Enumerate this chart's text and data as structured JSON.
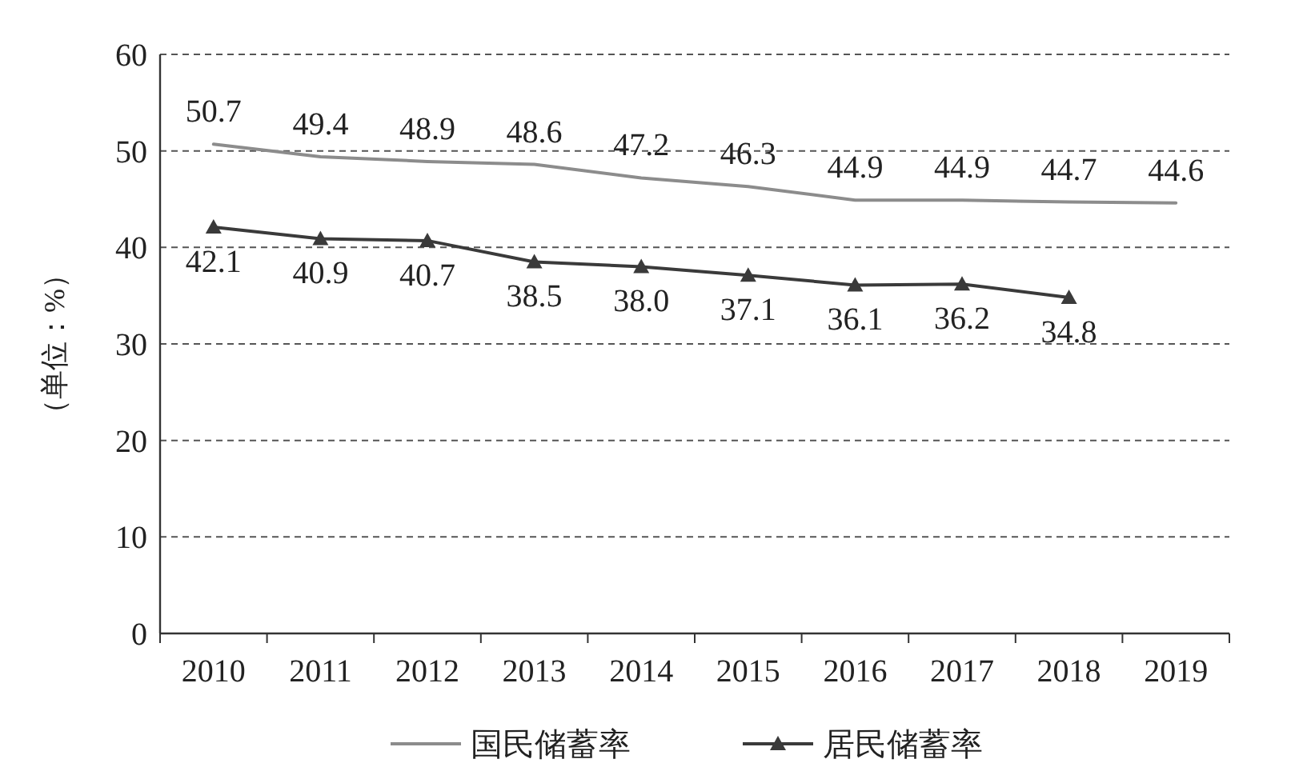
{
  "chart_data": {
    "type": "line",
    "ylabel": "（单位：%）",
    "categories": [
      "2010",
      "2011",
      "2012",
      "2013",
      "2014",
      "2015",
      "2016",
      "2017",
      "2018",
      "2019"
    ],
    "series": [
      {
        "name": "国民储蓄率",
        "color": "#8c8c8c",
        "marker": "none",
        "values": [
          50.7,
          49.4,
          48.9,
          48.6,
          47.2,
          46.3,
          44.9,
          44.9,
          44.7,
          44.6
        ],
        "value_labels": [
          "50.7",
          "49.4",
          "48.9",
          "48.6",
          "47.2",
          "46.3",
          "44.9",
          "44.9",
          "44.7",
          "44.6"
        ]
      },
      {
        "name": "居民储蓄率",
        "color": "#3a3a3a",
        "marker": "triangle",
        "values": [
          42.1,
          40.9,
          40.7,
          38.5,
          38.0,
          37.1,
          36.1,
          36.2,
          34.8,
          null
        ],
        "value_labels": [
          "42.1",
          "40.9",
          "40.7",
          "38.5",
          "38.0",
          "37.1",
          "36.1",
          "36.2",
          "34.8",
          null
        ]
      }
    ],
    "ylim": [
      0,
      60
    ],
    "yticks": [
      0,
      10,
      20,
      30,
      40,
      50,
      60
    ],
    "grid": "y",
    "legend": "bottom"
  }
}
